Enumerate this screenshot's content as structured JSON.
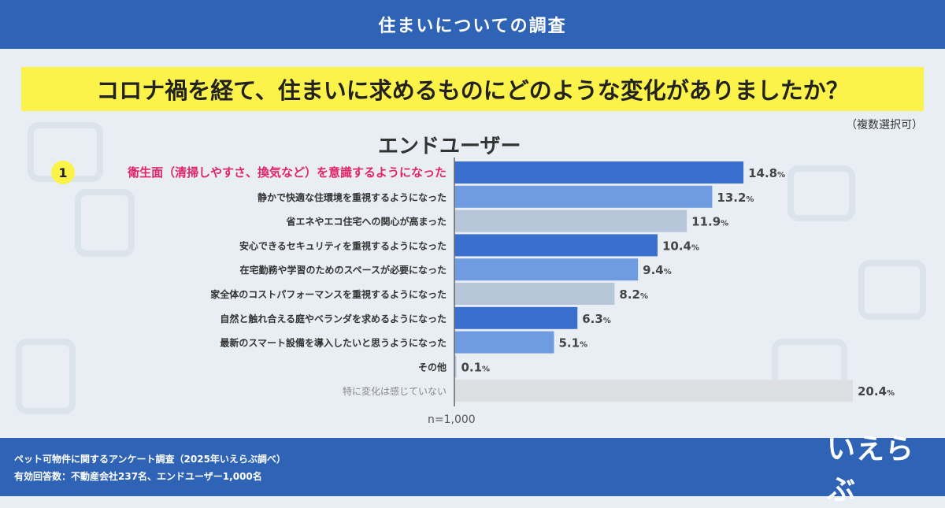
{
  "header": {
    "title": "住まいについての調査"
  },
  "question": {
    "text": "コロナ禍を経て、住まいに求めるものにどのような変化がありましたか？",
    "note": "（複数選択可）"
  },
  "group_title": "エンドユーザー",
  "rank_badge": "1",
  "sample_size": "n=1,000",
  "footer": {
    "survey_line": "ペット可物件に関するアンケート調査（2025年いえらぶ調べ）",
    "responses_line": "有効回答数：不動産会社237名、エンドユーザー1,000名"
  },
  "logo_text": "いえらぶ",
  "colors": {
    "header_blue": "#2f63b6",
    "highlight_yellow": "#fbf24a",
    "top_label_pink": "#e0246b",
    "bar_dark_blue": "#3a6fcf",
    "bar_light_blue": "#6f9be0",
    "bar_gray_blue": "#b7c6d9",
    "bar_light_gray": "#dedfe2"
  },
  "chart_data": {
    "type": "bar",
    "orientation": "horizontal",
    "categories": [
      "衛生面（清掃しやすさ、換気など）を意識するようになった",
      "静かで快適な住環境を重視するようになった",
      "省エネやエコ住宅への関心が高まった",
      "安心できるセキュリティを重視するようになった",
      "在宅勤務や学習のためのスペースが必要になった",
      "家全体のコストパフォーマンスを重視するようになった",
      "自然と触れ合える庭やベランダを求めるようになった",
      "最新のスマート設備を導入したいと思うようになった",
      "その他",
      "特に変化は感じていない"
    ],
    "values": [
      14.8,
      13.2,
      11.9,
      10.4,
      9.4,
      8.2,
      6.3,
      5.1,
      0.1,
      20.4
    ],
    "value_labels": [
      "14.8",
      "13.2",
      "11.9",
      "10.4",
      "9.4",
      "8.2",
      "6.3",
      "5.1",
      "0.1",
      "20.4"
    ],
    "unit": "%",
    "bar_colors": [
      "#3a6fcf",
      "#6f9be0",
      "#b7c6d9",
      "#3a6fcf",
      "#6f9be0",
      "#b7c6d9",
      "#3a6fcf",
      "#6f9be0",
      "#b7c6d9",
      "#dedfe2"
    ],
    "label_colors": [
      "#e0246b",
      "#333333",
      "#333333",
      "#333333",
      "#333333",
      "#333333",
      "#333333",
      "#333333",
      "#333333",
      "#888888"
    ],
    "xlim": [
      0,
      20.4
    ]
  }
}
